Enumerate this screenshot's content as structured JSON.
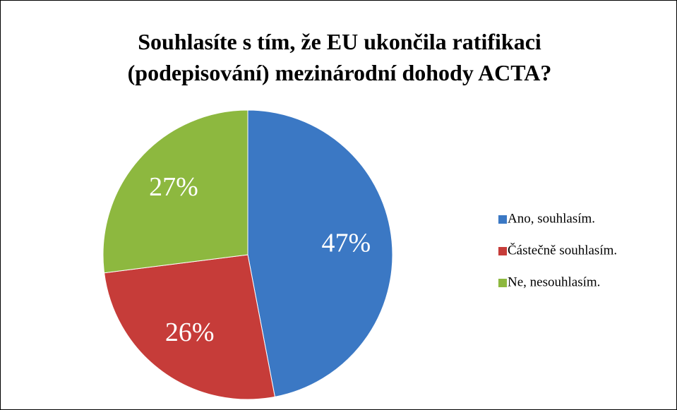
{
  "chart_data": {
    "type": "pie",
    "title": "Souhlasíte s tím, že EU ukončila ratifikaci (podepisování) mezinárodní dohody ACTA?",
    "categories": [
      "Ano, souhlasím.",
      "Částečně souhlasím.",
      "Ne, nesouhlasím."
    ],
    "values": [
      47,
      26,
      27
    ],
    "value_labels": [
      "47%",
      "26%",
      "27%"
    ],
    "colors": [
      "#3b78c4",
      "#c63c39",
      "#8db83f"
    ],
    "legend": "right"
  }
}
